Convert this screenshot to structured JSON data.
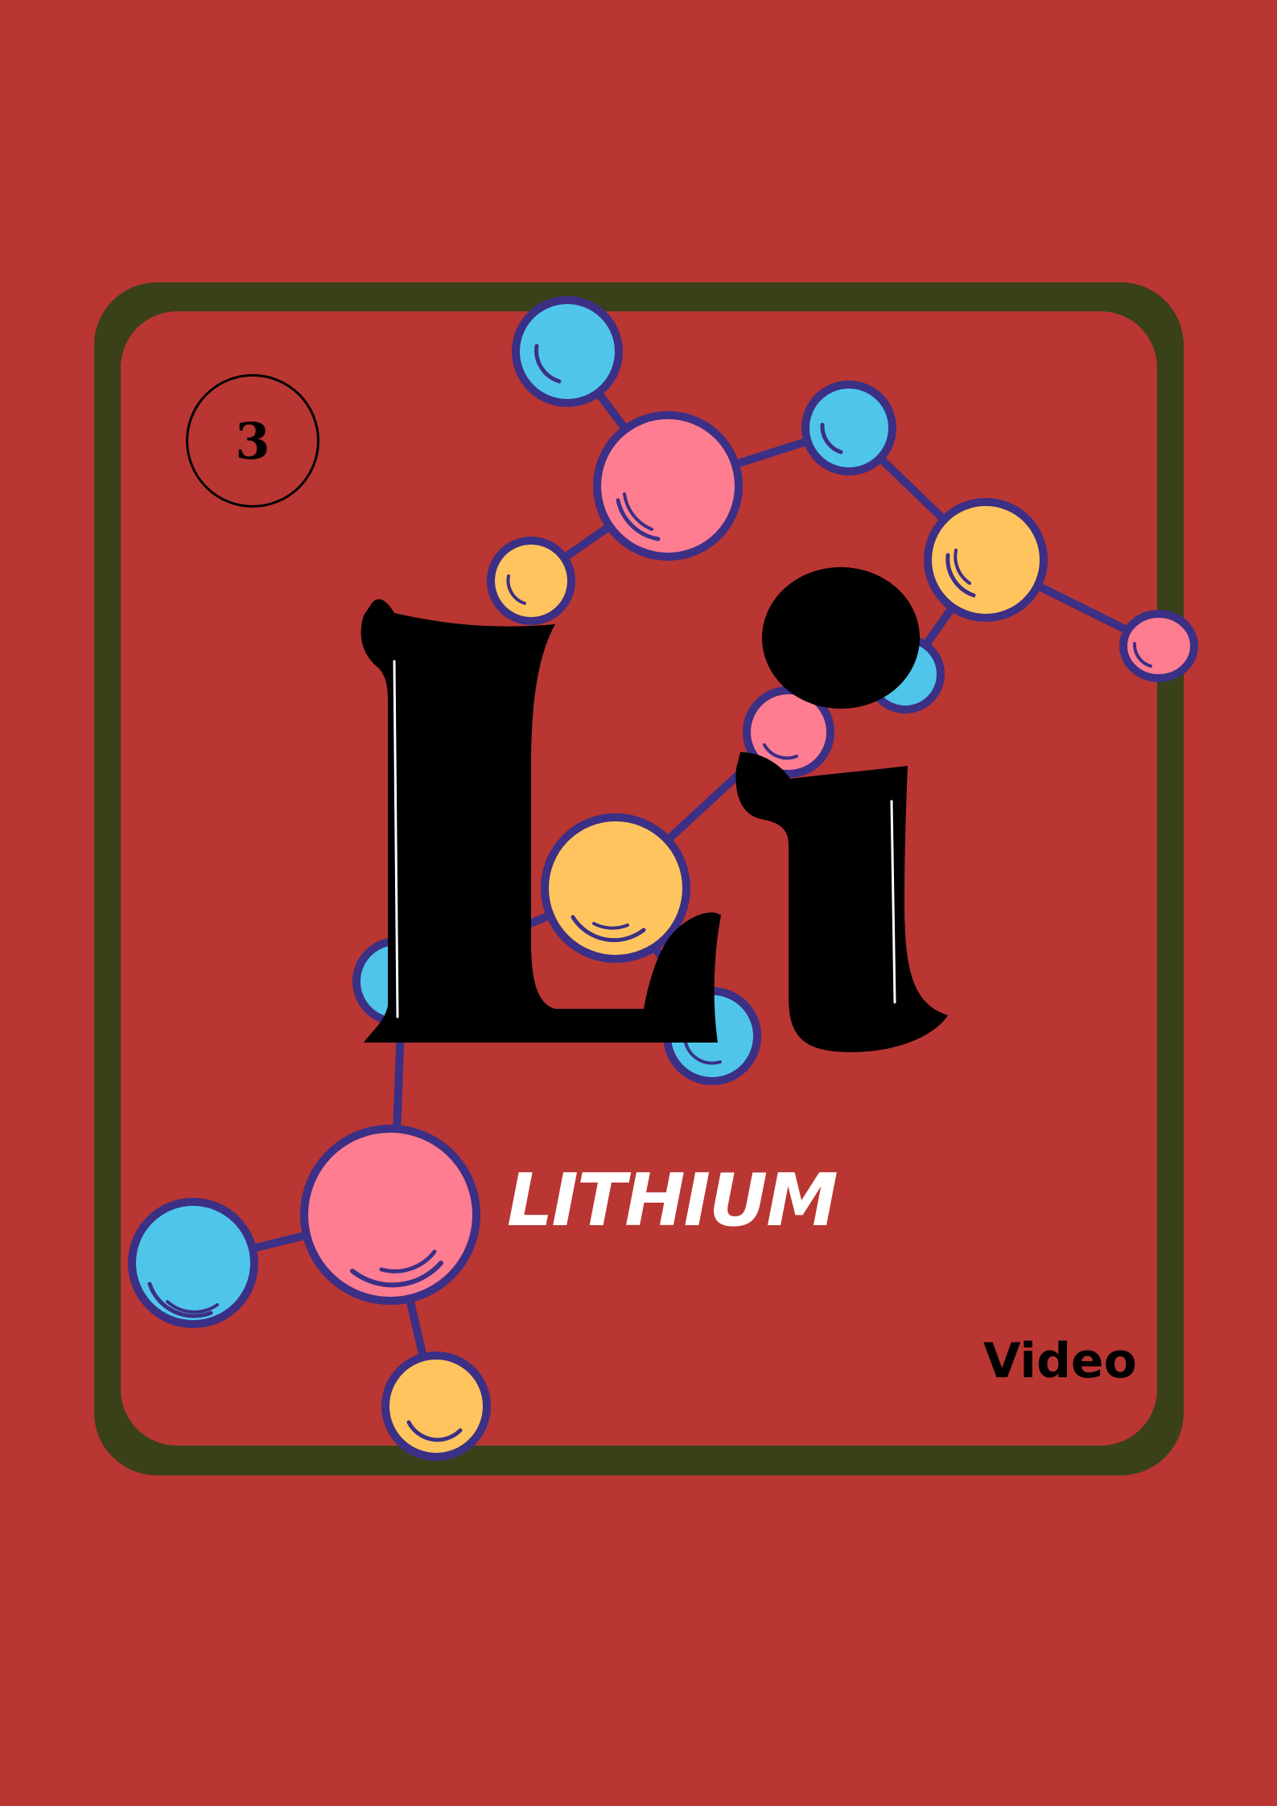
{
  "card": {
    "atomic_number": "3",
    "symbol": "Li",
    "name": "LITHIUM",
    "video_label": "Video"
  },
  "colors": {
    "background": "#b93633",
    "frame": "#3a4119",
    "atom_blue": "#4fc6e9",
    "atom_pink": "#ff7d91",
    "atom_yellow": "#ffc45e",
    "bond": "#3b2f86",
    "symbol": "#000000",
    "name_text": "#ffffff"
  },
  "icons": {
    "molecule": "molecule-illustration"
  }
}
